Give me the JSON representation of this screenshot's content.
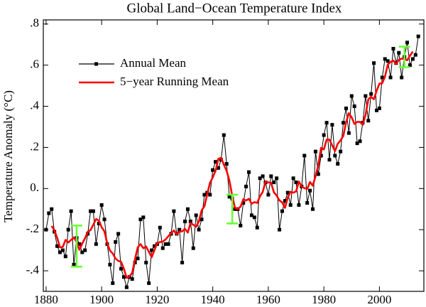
{
  "chart_data": {
    "type": "line",
    "title": "Global Land−Ocean Temperature Index",
    "y_label": "Temperature Anomaly (°C)",
    "x": [
      1880,
      1881,
      1882,
      1883,
      1884,
      1885,
      1886,
      1887,
      1888,
      1889,
      1890,
      1891,
      1892,
      1893,
      1894,
      1895,
      1896,
      1897,
      1898,
      1899,
      1900,
      1901,
      1902,
      1903,
      1904,
      1905,
      1906,
      1907,
      1908,
      1909,
      1910,
      1911,
      1912,
      1913,
      1914,
      1915,
      1916,
      1917,
      1918,
      1919,
      1920,
      1921,
      1922,
      1923,
      1924,
      1925,
      1926,
      1927,
      1928,
      1929,
      1930,
      1931,
      1932,
      1933,
      1934,
      1935,
      1936,
      1937,
      1938,
      1939,
      1940,
      1941,
      1942,
      1943,
      1944,
      1945,
      1946,
      1947,
      1948,
      1949,
      1950,
      1951,
      1952,
      1953,
      1954,
      1955,
      1956,
      1957,
      1958,
      1959,
      1960,
      1961,
      1962,
      1963,
      1964,
      1965,
      1966,
      1967,
      1968,
      1969,
      1970,
      1971,
      1972,
      1973,
      1974,
      1975,
      1976,
      1977,
      1978,
      1979,
      1980,
      1981,
      1982,
      1983,
      1984,
      1985,
      1986,
      1987,
      1988,
      1989,
      1990,
      1991,
      1992,
      1993,
      1994,
      1995,
      1996,
      1997,
      1998,
      1999,
      2000,
      2001,
      2002,
      2003,
      2004,
      2005,
      2006,
      2007,
      2008,
      2009,
      2010,
      2011,
      2012,
      2013,
      2014
    ],
    "series": [
      {
        "name": "Annual Mean",
        "color": "#000000",
        "markers": true,
        "values": [
          -0.2,
          -0.12,
          -0.1,
          -0.21,
          -0.28,
          -0.31,
          -0.3,
          -0.33,
          -0.2,
          -0.11,
          -0.37,
          -0.24,
          -0.27,
          -0.31,
          -0.3,
          -0.22,
          -0.11,
          -0.11,
          -0.27,
          -0.17,
          -0.08,
          -0.15,
          -0.27,
          -0.37,
          -0.46,
          -0.26,
          -0.22,
          -0.39,
          -0.43,
          -0.48,
          -0.43,
          -0.44,
          -0.36,
          -0.34,
          -0.15,
          -0.14,
          -0.36,
          -0.46,
          -0.3,
          -0.28,
          -0.27,
          -0.19,
          -0.29,
          -0.27,
          -0.27,
          -0.22,
          -0.11,
          -0.22,
          -0.2,
          -0.36,
          -0.16,
          -0.1,
          -0.16,
          -0.29,
          -0.13,
          -0.2,
          -0.15,
          -0.03,
          -0.02,
          -0.03,
          0.09,
          0.13,
          0.1,
          0.14,
          0.26,
          0.12,
          -0.04,
          -0.05,
          -0.1,
          -0.1,
          -0.18,
          -0.07,
          0.01,
          0.08,
          -0.13,
          -0.14,
          -0.19,
          0.05,
          0.06,
          0.03,
          -0.03,
          0.06,
          0.03,
          0.05,
          -0.2,
          -0.11,
          -0.06,
          -0.02,
          -0.08,
          0.05,
          0.03,
          -0.08,
          0.01,
          0.16,
          -0.07,
          -0.01,
          -0.1,
          0.18,
          0.07,
          0.16,
          0.26,
          0.32,
          0.14,
          0.31,
          0.16,
          0.12,
          0.18,
          0.32,
          0.39,
          0.27,
          0.45,
          0.4,
          0.22,
          0.23,
          0.32,
          0.45,
          0.33,
          0.46,
          0.61,
          0.38,
          0.39,
          0.54,
          0.63,
          0.62,
          0.54,
          0.68,
          0.61,
          0.66,
          0.54,
          0.64,
          0.71,
          0.6,
          0.63,
          0.65,
          0.74
        ]
      },
      {
        "name": "5−year Running Mean",
        "color": "#ff0000",
        "markers": false,
        "values": [
          null,
          null,
          -0.182,
          -0.204,
          -0.24,
          -0.286,
          -0.284,
          -0.25,
          -0.262,
          -0.25,
          -0.238,
          -0.26,
          -0.298,
          -0.268,
          -0.242,
          -0.21,
          -0.202,
          -0.176,
          -0.148,
          -0.156,
          -0.188,
          -0.208,
          -0.266,
          -0.302,
          -0.316,
          -0.34,
          -0.352,
          -0.356,
          -0.39,
          -0.434,
          -0.428,
          -0.41,
          -0.344,
          -0.286,
          -0.27,
          -0.29,
          -0.282,
          -0.308,
          -0.334,
          -0.3,
          -0.266,
          -0.26,
          -0.258,
          -0.248,
          -0.232,
          -0.218,
          -0.204,
          -0.222,
          -0.21,
          -0.208,
          -0.196,
          -0.214,
          -0.168,
          -0.176,
          -0.186,
          -0.16,
          -0.106,
          -0.086,
          -0.028,
          0.028,
          0.054,
          0.086,
          0.144,
          0.15,
          0.116,
          0.086,
          0.038,
          -0.034,
          -0.094,
          -0.1,
          -0.088,
          -0.052,
          -0.058,
          -0.05,
          -0.074,
          -0.066,
          -0.07,
          -0.038,
          -0.016,
          0.034,
          0.03,
          0.028,
          -0.018,
          -0.034,
          -0.058,
          -0.068,
          -0.094,
          -0.044,
          -0.016,
          -0.02,
          -0.014,
          0.034,
          0.01,
          0.002,
          -0.002,
          0.032,
          0.014,
          0.06,
          0.114,
          0.198,
          0.19,
          0.238,
          0.238,
          0.21,
          0.182,
          0.218,
          0.234,
          0.256,
          0.322,
          0.366,
          0.346,
          0.314,
          0.324,
          0.324,
          0.31,
          0.358,
          0.434,
          0.446,
          0.434,
          0.476,
          0.51,
          0.512,
          0.544,
          0.602,
          0.616,
          0.622,
          0.606,
          0.626,
          0.632,
          0.63,
          0.624,
          0.646,
          0.666,
          null,
          null
        ]
      }
    ],
    "error_bars": {
      "color": "#66ff33",
      "x": [
        1891,
        1947,
        2009
      ],
      "values": [
        -0.28,
        -0.1,
        0.64
      ],
      "errors": [
        0.1,
        0.07,
        0.05
      ]
    },
    "xlim": [
      1879,
      2016
    ],
    "ylim": [
      -0.5,
      0.82
    ],
    "xticks": [
      1880,
      1900,
      1920,
      1940,
      1960,
      1980,
      2000
    ],
    "yticks": [
      {
        "value": -0.4,
        "label": "-.4"
      },
      {
        "value": -0.2,
        "label": "-.2"
      },
      {
        "value": 0,
        "label": "0."
      },
      {
        "value": 0.2,
        "label": ".2"
      },
      {
        "value": 0.4,
        "label": ".4"
      },
      {
        "value": 0.6,
        "label": ".6"
      },
      {
        "value": 0.8,
        "label": ".8"
      }
    ],
    "legend": "upper left",
    "grid": false
  }
}
